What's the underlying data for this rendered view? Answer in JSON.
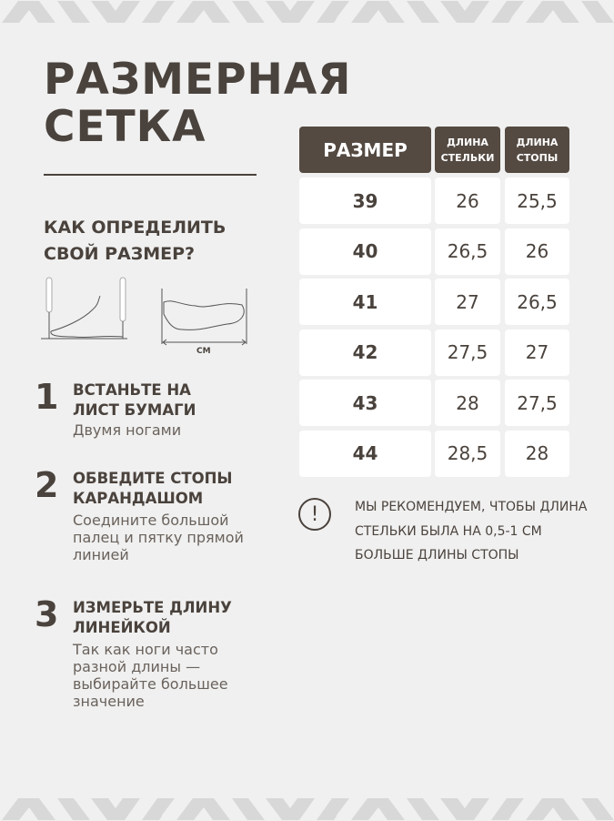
{
  "title": [
    "РАЗМЕРНАЯ",
    "СЕТКА"
  ],
  "how_to": [
    "КАК ОПРЕДЕЛИТЬ",
    "СВОЙ РАЗМЕР?"
  ],
  "illustration_unit": "СМ",
  "steps": [
    {
      "num": "1",
      "title": "ВСТАНЬТЕ НА ЛИСТ БУМАГИ",
      "desc": "Двумя ногами"
    },
    {
      "num": "2",
      "title": "ОБВЕДИТЕ СТОПЫ КАРАНДАШОМ",
      "desc": "Соедините большой палец и пятку прямой линией"
    },
    {
      "num": "3",
      "title": "ИЗМЕРЬТЕ ДЛИНУ ЛИНЕЙКОЙ",
      "desc": "Так как ноги часто разной длины — выбирайте большее значение"
    }
  ],
  "table": {
    "headers": [
      "РАЗМЕР",
      "ДЛИНА СТЕЛЬКИ",
      "ДЛИНА СТОПЫ"
    ],
    "rows": [
      [
        "39",
        "26",
        "25,5"
      ],
      [
        "40",
        "26,5",
        "26"
      ],
      [
        "41",
        "27",
        "26,5"
      ],
      [
        "42",
        "27,5",
        "27"
      ],
      [
        "43",
        "28",
        "27,5"
      ],
      [
        "44",
        "28,5",
        "28"
      ]
    ]
  },
  "note": "МЫ РЕКОМЕНДУЕМ, ЧТОБЫ ДЛИНА СТЕЛЬКИ БЫЛА НА 0,5-1 СМ БОЛЬШЕ ДЛИНЫ СТОПЫ",
  "colors": {
    "background": "#f0f0f0",
    "header": "#544a42",
    "text": "#4a423c",
    "pattern": "#d8d8d8"
  }
}
